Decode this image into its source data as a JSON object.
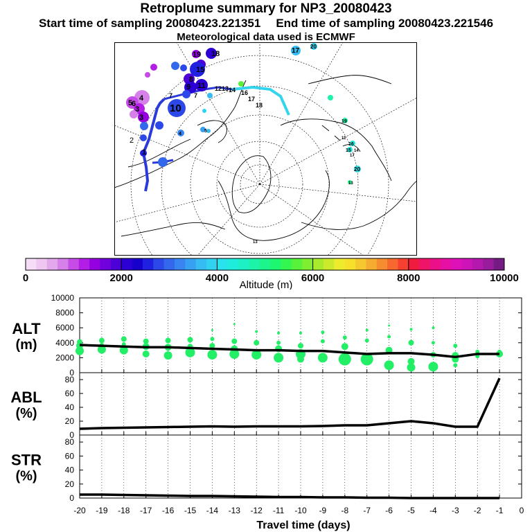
{
  "title": "Retroplume summary for NP3_20080423",
  "subtitle": {
    "start_label": "Start time of sampling",
    "start_value": "20080423.221351",
    "end_label": "End time of sampling",
    "end_value": "20080423.221546"
  },
  "met_note": "Meteorological data used is ECMWF",
  "colors": {
    "track_dark": "#2b3bd9",
    "track_light": "#33d4ee",
    "scatter": "#22ee66",
    "line": "#000000"
  },
  "map": {
    "labels": [
      "19",
      "18",
      "15",
      "8",
      "6",
      "5",
      "4",
      "3",
      "3",
      "2",
      "1",
      "9",
      "11",
      "12",
      "13",
      "7",
      "7",
      "10",
      "4",
      "5",
      "14",
      "16",
      "17",
      "18",
      "17",
      "20",
      "19",
      "16",
      "15",
      "11",
      "14",
      "17",
      "20",
      "13",
      "13"
    ]
  },
  "colorbar": {
    "ticks": [
      "0",
      "2000",
      "4000",
      "6000",
      "8000",
      "10000"
    ],
    "label": "Altitude (m)",
    "colors": [
      "#f6dcf6",
      "#eec6f0",
      "#e2a8ec",
      "#d680ea",
      "#c64ce8",
      "#b21ee6",
      "#9400e0",
      "#7000dc",
      "#4e00d8",
      "#2c00d4",
      "#1800cc",
      "#2020e0",
      "#2c48e8",
      "#3468ec",
      "#3884f0",
      "#38a0f2",
      "#36bcf2",
      "#30d2f0",
      "#28e2ec",
      "#20ecdc",
      "#1cf0c4",
      "#1cf2a8",
      "#1cf48c",
      "#1ef670",
      "#34f650",
      "#58f23c",
      "#80ee30",
      "#a8ea2c",
      "#ccea2c",
      "#ecec2c",
      "#f6e02c",
      "#f6c830",
      "#f6ac30",
      "#f68c30",
      "#f66830",
      "#f64030",
      "#f01c40",
      "#f01468",
      "#ec1088",
      "#e610a4",
      "#de10b8",
      "#cc14b8",
      "#b418ac",
      "#981c9c",
      "#741c84"
    ]
  },
  "chart_data": [
    {
      "type": "line",
      "id": "alt",
      "title": "ALT",
      "unit": "(m)",
      "xlabel": "Travel time (days)",
      "x_ticks": [
        "-20",
        "-19",
        "-18",
        "-17",
        "-16",
        "-15",
        "-14",
        "-13",
        "-12",
        "-11",
        "-10",
        "-9",
        "-8",
        "-7",
        "-6",
        "-5",
        "-4",
        "-3",
        "-2",
        "-1",
        "0"
      ],
      "xlim": [
        -20,
        0
      ],
      "ylim": [
        0,
        10000
      ],
      "y_ticks": [
        "0",
        "2000",
        "4000",
        "6000",
        "8000",
        "10000"
      ],
      "x": [
        -20,
        -19,
        -18,
        -17,
        -16,
        -15,
        -14,
        -13,
        -12,
        -11,
        -10,
        -9,
        -8,
        -7,
        -6,
        -5,
        -4,
        -3,
        -2,
        -1
      ],
      "values": [
        3700,
        3600,
        3500,
        3400,
        3400,
        3300,
        3200,
        3100,
        3000,
        3000,
        2900,
        2900,
        2700,
        2500,
        2600,
        2600,
        2400,
        2100,
        2500,
        2500
      ],
      "scatter": [
        {
          "x": -20,
          "y": 3600,
          "s": 5
        },
        {
          "x": -20,
          "y": 2900,
          "s": 6
        },
        {
          "x": -20,
          "y": 4100,
          "s": 4
        },
        {
          "x": -19,
          "y": 4300,
          "s": 4
        },
        {
          "x": -19,
          "y": 3100,
          "s": 6
        },
        {
          "x": -19,
          "y": 3700,
          "s": 3
        },
        {
          "x": -18,
          "y": 4500,
          "s": 4
        },
        {
          "x": -18,
          "y": 3000,
          "s": 6
        },
        {
          "x": -18,
          "y": 3800,
          "s": 3
        },
        {
          "x": -17,
          "y": 4200,
          "s": 4
        },
        {
          "x": -17,
          "y": 3500,
          "s": 5
        },
        {
          "x": -17,
          "y": 2500,
          "s": 5
        },
        {
          "x": -16,
          "y": 4300,
          "s": 4
        },
        {
          "x": -16,
          "y": 3400,
          "s": 5
        },
        {
          "x": -16,
          "y": 2300,
          "s": 6
        },
        {
          "x": -15,
          "y": 4400,
          "s": 4
        },
        {
          "x": -15,
          "y": 3500,
          "s": 4
        },
        {
          "x": -15,
          "y": 2700,
          "s": 7
        },
        {
          "x": -14,
          "y": 5700,
          "s": 1.5
        },
        {
          "x": -14,
          "y": 4500,
          "s": 3
        },
        {
          "x": -14,
          "y": 3600,
          "s": 4
        },
        {
          "x": -14,
          "y": 2400,
          "s": 7
        },
        {
          "x": -13,
          "y": 6500,
          "s": 1.5
        },
        {
          "x": -13,
          "y": 4200,
          "s": 4
        },
        {
          "x": -13,
          "y": 3200,
          "s": 5
        },
        {
          "x": -13,
          "y": 2500,
          "s": 7
        },
        {
          "x": -12,
          "y": 5500,
          "s": 2
        },
        {
          "x": -12,
          "y": 4000,
          "s": 4
        },
        {
          "x": -12,
          "y": 2400,
          "s": 7
        },
        {
          "x": -11,
          "y": 5300,
          "s": 2
        },
        {
          "x": -11,
          "y": 4000,
          "s": 3
        },
        {
          "x": -11,
          "y": 3200,
          "s": 5
        },
        {
          "x": -11,
          "y": 2000,
          "s": 7
        },
        {
          "x": -10,
          "y": 5300,
          "s": 2
        },
        {
          "x": -10,
          "y": 3600,
          "s": 4
        },
        {
          "x": -10,
          "y": 2500,
          "s": 7
        },
        {
          "x": -10,
          "y": 1800,
          "s": 5
        },
        {
          "x": -9,
          "y": 5400,
          "s": 2.5
        },
        {
          "x": -9,
          "y": 4200,
          "s": 3
        },
        {
          "x": -9,
          "y": 2000,
          "s": 7
        },
        {
          "x": -8,
          "y": 4700,
          "s": 3
        },
        {
          "x": -8,
          "y": 3500,
          "s": 5
        },
        {
          "x": -8,
          "y": 1800,
          "s": 9
        },
        {
          "x": -7,
          "y": 5700,
          "s": 2
        },
        {
          "x": -7,
          "y": 4300,
          "s": 3
        },
        {
          "x": -7,
          "y": 1800,
          "s": 9
        },
        {
          "x": -6,
          "y": 6300,
          "s": 1.5
        },
        {
          "x": -6,
          "y": 4800,
          "s": 2.5
        },
        {
          "x": -6,
          "y": 3000,
          "s": 5
        },
        {
          "x": -6,
          "y": 1000,
          "s": 7
        },
        {
          "x": -5,
          "y": 5800,
          "s": 2
        },
        {
          "x": -5,
          "y": 4000,
          "s": 4
        },
        {
          "x": -5,
          "y": 1500,
          "s": 5
        },
        {
          "x": -5,
          "y": 700,
          "s": 6
        },
        {
          "x": -4,
          "y": 6000,
          "s": 2
        },
        {
          "x": -4,
          "y": 4000,
          "s": 2.5
        },
        {
          "x": -4,
          "y": 2400,
          "s": 4
        },
        {
          "x": -4,
          "y": 800,
          "s": 7
        },
        {
          "x": -3,
          "y": 3600,
          "s": 3
        },
        {
          "x": -3,
          "y": 2300,
          "s": 5
        },
        {
          "x": -3,
          "y": 1800,
          "s": 5
        },
        {
          "x": -3,
          "y": 1000,
          "s": 3
        },
        {
          "x": -2,
          "y": 2800,
          "s": 3
        },
        {
          "x": -2,
          "y": 2200,
          "s": 3
        },
        {
          "x": -1,
          "y": 2500,
          "s": 5
        },
        {
          "x": -1,
          "y": 2800,
          "s": 3
        }
      ]
    },
    {
      "type": "line",
      "id": "abl",
      "title": "ABL",
      "unit": "(%)",
      "xlim": [
        -20,
        0
      ],
      "ylim": [
        0,
        90
      ],
      "y_ticks": [
        "0",
        "20",
        "40",
        "60",
        "80"
      ],
      "x": [
        -20,
        -19,
        -18,
        -17,
        -16,
        -15,
        -14,
        -13,
        -12,
        -11,
        -10,
        -9,
        -8,
        -7,
        -6,
        -5,
        -4,
        -3,
        -2,
        -1
      ],
      "values": [
        9,
        10,
        10.5,
        11,
        11.5,
        12,
        12.5,
        12,
        12.5,
        12.5,
        12.5,
        13,
        14,
        14,
        17,
        20,
        17,
        12,
        12,
        82
      ]
    },
    {
      "type": "line",
      "id": "str",
      "title": "STR",
      "unit": "(%)",
      "xlim": [
        -20,
        0
      ],
      "ylim": [
        0,
        90
      ],
      "y_ticks": [
        "0",
        "20",
        "40",
        "60",
        "80"
      ],
      "x": [
        -20,
        -19,
        -18,
        -17,
        -16,
        -15,
        -14,
        -13,
        -12,
        -11,
        -10,
        -9,
        -8,
        -7,
        -6,
        -5,
        -4,
        -3,
        -2,
        -1
      ],
      "values": [
        5,
        5,
        4.5,
        4,
        3.5,
        3,
        3,
        2.5,
        2,
        1.5,
        1.5,
        1,
        1,
        0.5,
        0.5,
        0,
        0,
        0,
        0,
        0
      ]
    }
  ]
}
